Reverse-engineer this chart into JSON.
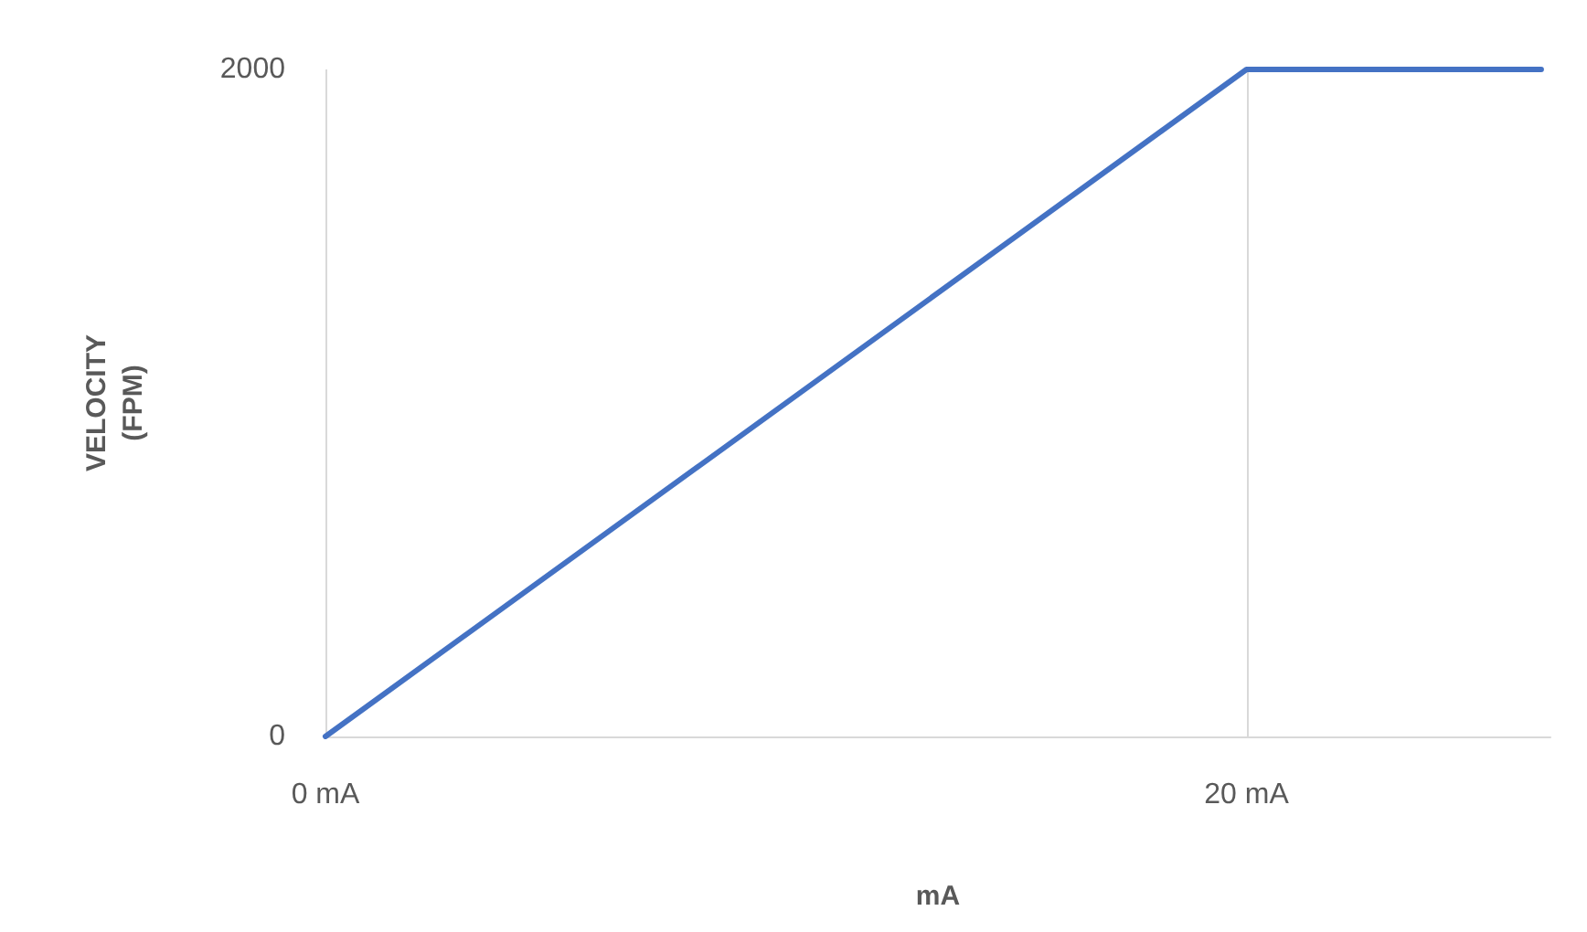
{
  "chart_data": {
    "type": "line",
    "xlabel": "mA",
    "ylabel": "VELOCITY\n(FPM)",
    "x": [
      0,
      20,
      26.4
    ],
    "series": [
      {
        "color": "#4472c4",
        "values": [
          0,
          2000,
          2000
        ]
      }
    ],
    "xlim": [
      0,
      26.6
    ],
    "xticks": [
      {
        "value": 0,
        "label": "0 mA"
      },
      {
        "value": 20,
        "label": "20 mA"
      }
    ],
    "ylim": [
      0,
      2000
    ],
    "yticks": [
      0,
      2000
    ],
    "grid": "x",
    "marker": "none",
    "line_style": "solid"
  }
}
